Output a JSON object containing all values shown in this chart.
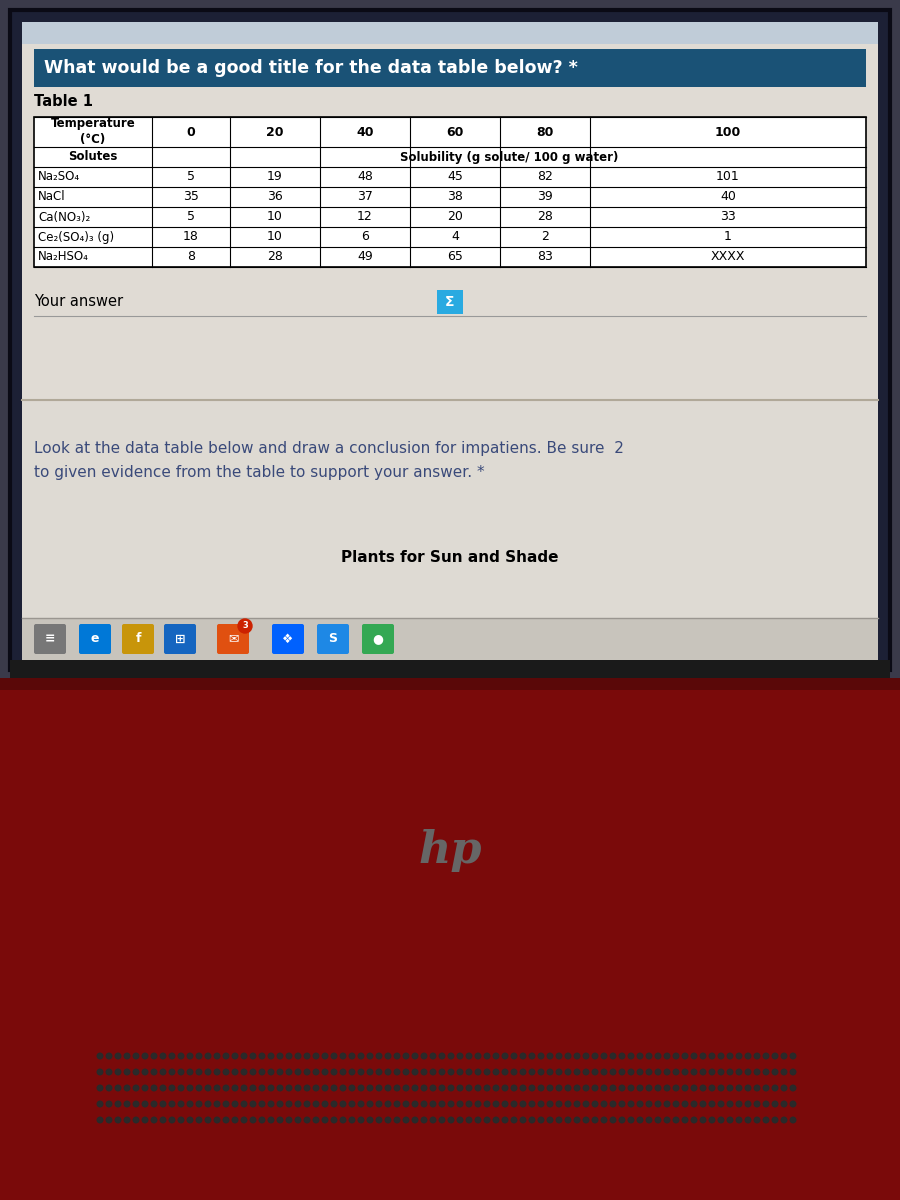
{
  "question_text": "What would be a good title for the data table below? *",
  "question_bg_color": "#1a5276",
  "question_text_color": "#ffffff",
  "table_title": "Table 1",
  "col_headers": [
    "Temperature\n(°C)",
    "0",
    "20",
    "40",
    "60",
    "80",
    "100"
  ],
  "solubility_header": "Solubility (g solute/ 100 g water)",
  "solutes_label": "Solutes",
  "rows": [
    [
      "Na₂SO₄",
      "5",
      "19",
      "48",
      "45",
      "82",
      "101"
    ],
    [
      "NaCl",
      "35",
      "36",
      "37",
      "38",
      "39",
      "40"
    ],
    [
      "Ca(NO₃)₂",
      "5",
      "10",
      "12",
      "20",
      "28",
      "33"
    ],
    [
      "Ce₂(SO₄)₃ (g)",
      "18",
      "10",
      "6",
      "4",
      "2",
      "1"
    ],
    [
      "Na₂HSO₄",
      "8",
      "28",
      "49",
      "65",
      "83",
      "XXXX"
    ]
  ],
  "your_answer_label": "Your answer",
  "second_question_line1": "Look at the data table below and draw a conclusion for impatiens. Be sure  2",
  "second_question_line2": "to given evidence from the table to support your answer. *",
  "second_answer_label": "Plants for Sun and Shade",
  "page_bg_color": "#e8e4de",
  "table_bg_color": "#ffffff",
  "screen_content_bg": "#ddd9d2",
  "screen_bg": "#1c2035",
  "laptop_red": "#7a0a0a",
  "laptop_hinge": "#111111",
  "laptop_base_dark": "#3a3a3a",
  "speaker_dot_color": "#2a2a2a",
  "hp_logo_color": "#666666",
  "taskbar_bg": "#c8c4bc",
  "browser_chrome_bg": "#c0ccd8",
  "separator_color": "#b0a898",
  "sigma_btn_color": "#29aae1",
  "text_blue": "#3a4a7a",
  "text_dark": "#222222"
}
